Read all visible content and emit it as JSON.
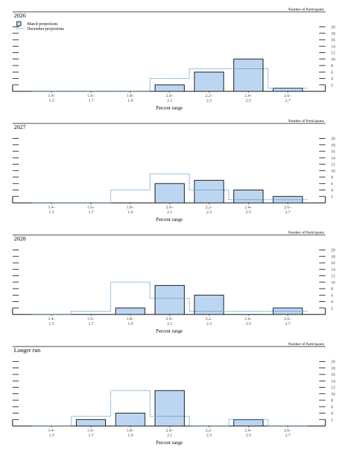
{
  "chart_data": [
    {
      "type": "bar",
      "title": "2026",
      "xlabel": "Percent range",
      "ylabel": "Number of Participants",
      "categories": [
        [
          "1.4–",
          "1.5"
        ],
        [
          "1.6–",
          "1.7"
        ],
        [
          "1.8–",
          "1.9"
        ],
        [
          "2.0–",
          "2.1"
        ],
        [
          "2.2–",
          "2.3"
        ],
        [
          "2.4–",
          "2.5"
        ],
        [
          "2.6–",
          "2.7"
        ]
      ],
      "ylim": [
        0,
        20
      ],
      "yticks": [
        2,
        4,
        6,
        8,
        10,
        12,
        14,
        16,
        18,
        20
      ],
      "legend_position": "top-left",
      "series": [
        {
          "name": "March projections",
          "style": "bar",
          "values": [
            0,
            0,
            0,
            2,
            6,
            10,
            1
          ]
        },
        {
          "name": "December projections",
          "style": "dotted-step",
          "values": [
            0,
            0,
            0,
            4,
            7,
            7,
            1
          ]
        }
      ]
    },
    {
      "type": "bar",
      "title": "2027",
      "xlabel": "Percent range",
      "ylabel": "Number of Participants",
      "categories": [
        [
          "1.4–",
          "1.5"
        ],
        [
          "1.6–",
          "1.7"
        ],
        [
          "1.8–",
          "1.9"
        ],
        [
          "2.0–",
          "2.1"
        ],
        [
          "2.2–",
          "2.3"
        ],
        [
          "2.4–",
          "2.5"
        ],
        [
          "2.6–",
          "2.7"
        ]
      ],
      "ylim": [
        0,
        20
      ],
      "yticks": [
        2,
        4,
        6,
        8,
        10,
        12,
        14,
        16,
        18,
        20
      ],
      "series": [
        {
          "name": "March projections",
          "style": "bar",
          "values": [
            0,
            0,
            0,
            6,
            7,
            4,
            2
          ]
        },
        {
          "name": "December projections",
          "style": "dotted-step",
          "values": [
            0,
            0,
            4,
            9,
            4,
            1,
            1
          ]
        }
      ]
    },
    {
      "type": "bar",
      "title": "2028",
      "xlabel": "Percent range",
      "ylabel": "Number of Participants",
      "categories": [
        [
          "1.4–",
          "1.5"
        ],
        [
          "1.6–",
          "1.7"
        ],
        [
          "1.8–",
          "1.9"
        ],
        [
          "2.0–",
          "2.1"
        ],
        [
          "2.2–",
          "2.3"
        ],
        [
          "2.4–",
          "2.5"
        ],
        [
          "2.6–",
          "2.7"
        ]
      ],
      "ylim": [
        0,
        20
      ],
      "yticks": [
        2,
        4,
        6,
        8,
        10,
        12,
        14,
        16,
        18,
        20
      ],
      "series": [
        {
          "name": "March projections",
          "style": "bar",
          "values": [
            0,
            0,
            2,
            9,
            6,
            0,
            2
          ]
        },
        {
          "name": "December projections",
          "style": "dotted-step",
          "values": [
            0,
            1,
            10,
            5,
            1,
            1,
            1
          ]
        }
      ]
    },
    {
      "type": "bar",
      "title": "Longer run",
      "xlabel": "Percent range",
      "ylabel": "Number of Participants",
      "categories": [
        [
          "1.4–",
          "1.5"
        ],
        [
          "1.6–",
          "1.7"
        ],
        [
          "1.8–",
          "1.9"
        ],
        [
          "2.0–",
          "2.1"
        ],
        [
          "2.2–",
          "2.3"
        ],
        [
          "2.4–",
          "2.5"
        ],
        [
          "2.6–",
          "2.7"
        ]
      ],
      "ylim": [
        0,
        20
      ],
      "yticks": [
        2,
        4,
        6,
        8,
        10,
        12,
        14,
        16,
        18,
        20
      ],
      "series": [
        {
          "name": "March projections",
          "style": "bar",
          "values": [
            0,
            2,
            4,
            11,
            0,
            2,
            0
          ]
        },
        {
          "name": "December projections",
          "style": "dotted-step",
          "values": [
            0,
            3,
            11,
            3,
            0,
            2,
            0
          ]
        }
      ]
    }
  ],
  "colors": {
    "bar_fill": "#bcd6f2",
    "bar_stroke": "#000000",
    "dotted_line": "#2a7fb8",
    "axis": "#000000"
  }
}
